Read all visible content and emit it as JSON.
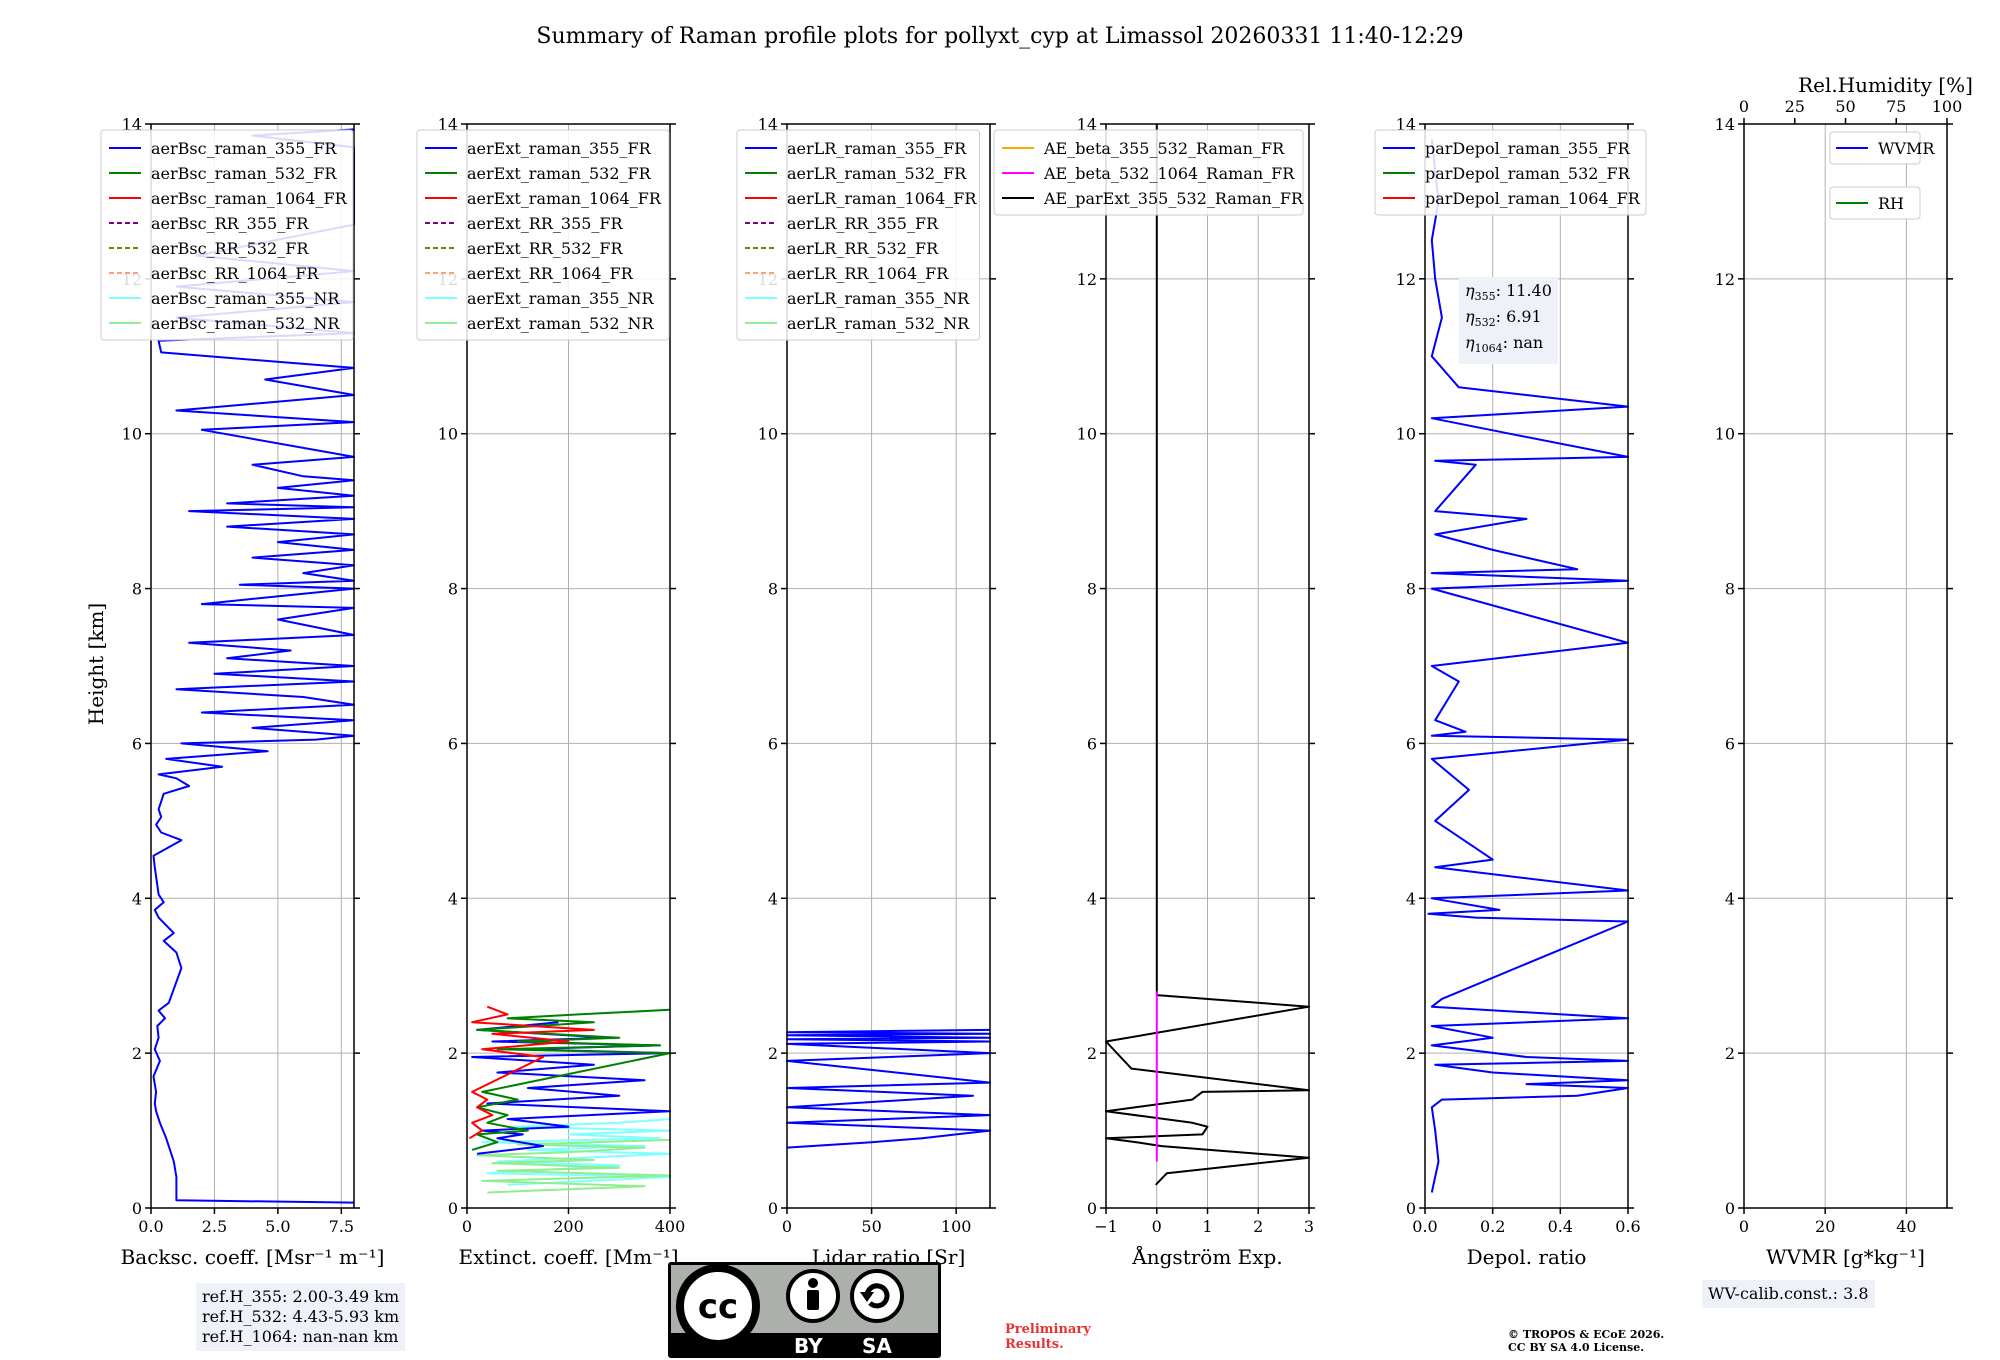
{
  "title": "Summary of Raman profile plots for pollyxt_cyp at Limassol 20260331 11:40-12:29",
  "ylabel": "Height [km]",
  "yticks": [
    "0",
    "2",
    "4",
    "6",
    "8",
    "10",
    "12",
    "14"
  ],
  "panels": [
    {
      "id": "bsc",
      "xlabel": "Backsc. coeff. [Msr⁻¹ m⁻¹]",
      "xticks": [
        "0.0",
        "2.5",
        "5.0",
        "7.5"
      ],
      "xlim": [
        0,
        8
      ],
      "legend": [
        {
          "label": "aerBsc_raman_355_FR",
          "color": "#0000ff",
          "dash": false
        },
        {
          "label": "aerBsc_raman_532_FR",
          "color": "#008000",
          "dash": false
        },
        {
          "label": "aerBsc_raman_1064_FR",
          "color": "#ff0000",
          "dash": false
        },
        {
          "label": "aerBsc_RR_355_FR",
          "color": "#800080",
          "dash": true
        },
        {
          "label": "aerBsc_RR_532_FR",
          "color": "#808000",
          "dash": true
        },
        {
          "label": "aerBsc_RR_1064_FR",
          "color": "#ffa07a",
          "dash": true
        },
        {
          "label": "aerBsc_raman_355_NR",
          "color": "#7fffff",
          "dash": false
        },
        {
          "label": "aerBsc_raman_532_NR",
          "color": "#90ee90",
          "dash": false
        }
      ]
    },
    {
      "id": "ext",
      "xlabel": "Extinct. coeff. [Mm⁻¹]",
      "xticks": [
        "0",
        "200",
        "400"
      ],
      "xlim": [
        0,
        400
      ],
      "legend": [
        {
          "label": "aerExt_raman_355_FR",
          "color": "#0000ff",
          "dash": false
        },
        {
          "label": "aerExt_raman_532_FR",
          "color": "#008000",
          "dash": false
        },
        {
          "label": "aerExt_raman_1064_FR",
          "color": "#ff0000",
          "dash": false
        },
        {
          "label": "aerExt_RR_355_FR",
          "color": "#800080",
          "dash": true
        },
        {
          "label": "aerExt_RR_532_FR",
          "color": "#808000",
          "dash": true
        },
        {
          "label": "aerExt_RR_1064_FR",
          "color": "#ffa07a",
          "dash": true
        },
        {
          "label": "aerExt_raman_355_NR",
          "color": "#7fffff",
          "dash": false
        },
        {
          "label": "aerExt_raman_532_NR",
          "color": "#90ee90",
          "dash": false
        }
      ]
    },
    {
      "id": "lr",
      "xlabel": "Lidar ratio [Sr]",
      "xticks": [
        "0",
        "50",
        "100"
      ],
      "xlim": [
        0,
        120
      ],
      "legend": [
        {
          "label": "aerLR_raman_355_FR",
          "color": "#0000ff",
          "dash": false
        },
        {
          "label": "aerLR_raman_532_FR",
          "color": "#008000",
          "dash": false
        },
        {
          "label": "aerLR_raman_1064_FR",
          "color": "#ff0000",
          "dash": false
        },
        {
          "label": "aerLR_RR_355_FR",
          "color": "#800080",
          "dash": true
        },
        {
          "label": "aerLR_RR_532_FR",
          "color": "#808000",
          "dash": true
        },
        {
          "label": "aerLR_RR_1064_FR",
          "color": "#ffa07a",
          "dash": true
        },
        {
          "label": "aerLR_raman_355_NR",
          "color": "#7fffff",
          "dash": false
        },
        {
          "label": "aerLR_raman_532_NR",
          "color": "#90ee90",
          "dash": false
        }
      ]
    },
    {
      "id": "ae",
      "xlabel": "Ångström Exp.",
      "xticks": [
        "−1",
        "0",
        "1",
        "2",
        "3"
      ],
      "xlim": [
        -1,
        3
      ],
      "legend": [
        {
          "label": "AE_beta_355_532_Raman_FR",
          "color": "#ffa500",
          "dash": false
        },
        {
          "label": "AE_beta_532_1064_Raman_FR",
          "color": "#ff00ff",
          "dash": false
        },
        {
          "label": "AE_parExt_355_532_Raman_FR",
          "color": "#000000",
          "dash": false
        }
      ]
    },
    {
      "id": "dep",
      "xlabel": "Depol. ratio",
      "xticks": [
        "0.0",
        "0.2",
        "0.4",
        "0.6"
      ],
      "xlim": [
        0,
        0.6
      ],
      "legend": [
        {
          "label": "parDepol_raman_355_FR",
          "color": "#0000ff",
          "dash": false
        },
        {
          "label": "parDepol_raman_532_FR",
          "color": "#008000",
          "dash": false
        },
        {
          "label": "parDepol_raman_1064_FR",
          "color": "#ff0000",
          "dash": false
        }
      ]
    },
    {
      "id": "wv",
      "xlabel": "WVMR [g*kg⁻¹]",
      "xticks": [
        "0",
        "20",
        "40"
      ],
      "xlim": [
        0,
        50
      ],
      "toplabel": "Rel.Humidity [%]",
      "topticks": [
        "0",
        "25",
        "50",
        "75",
        "100"
      ],
      "legend": [
        {
          "label": "WVMR",
          "color": "#0000ff",
          "dash": false
        },
        {
          "label": "RH",
          "color": "#008000",
          "dash": false
        }
      ]
    }
  ],
  "eta": {
    "e355": "11.40",
    "e532": "6.91",
    "e1064": "nan"
  },
  "refh": {
    "r355": "ref.H_355: 2.00-3.49 km",
    "r532": "ref.H_532: 4.43-5.93 km",
    "r1064": "ref.H_1064: nan-nan km"
  },
  "wv_calib": "WV-calib.const.: 3.8",
  "preliminary": [
    "Preliminary",
    "Results."
  ],
  "copyright": [
    "© TROPOS & ECoE 2026.",
    "CC BY SA 4.0 License."
  ],
  "cc_badge": {
    "by": "BY",
    "sa": "SA",
    "cc": "cc"
  },
  "chart_data": [
    {
      "type": "line",
      "title": "Backsc. coeff.",
      "xlabel": "Backsc. coeff. [Msr⁻¹ m⁻¹]",
      "ylabel": "Height [km]",
      "xlim": [
        0,
        8
      ],
      "ylim": [
        0,
        14
      ],
      "series": [
        {
          "name": "aerBsc_raman_355_FR",
          "color": "#0000ff",
          "x": [
            8.0,
            1.0,
            1.0,
            1.0,
            1.0,
            0.9,
            0.6,
            0.35,
            0.2,
            0.15,
            0.2,
            0.1,
            0.35,
            0.15,
            0.3,
            0.25,
            0.55,
            0.3,
            0.7,
            1.2,
            1.0,
            0.5,
            0.9,
            0.3,
            0.15,
            0.5,
            0.3,
            0.15,
            0.1,
            1.2,
            0.4,
            0.2,
            0.4,
            0.3,
            0.4,
            0.5,
            1.5,
            1.0,
            0.3,
            2.8,
            0.6,
            4.6,
            1.2,
            6.5,
            8.0,
            4.0,
            8.0,
            2.0,
            8.0,
            6.0,
            1.0,
            8.0,
            2.5,
            8.0,
            3.0,
            5.5,
            1.5,
            8.0,
            5.0,
            8.0,
            2.0,
            8.0,
            3.5,
            8.0,
            6.0,
            8.0,
            4.0,
            8.0,
            5.0,
            8.0,
            3.0,
            8.0,
            1.5,
            8.0,
            3.0,
            8.0,
            5.0,
            8.0,
            6.0,
            4.0,
            8.0,
            2.0,
            8.0,
            1.0,
            8.0,
            4.5,
            8.0,
            0.4,
            0.3,
            8.0,
            1.0,
            8.0,
            1.0,
            8.0,
            1.8,
            8.0,
            8.0,
            8.0,
            8.0,
            4.0,
            8.0
          ],
          "y": [
            0.07,
            0.1,
            0.25,
            0.26,
            0.4,
            0.6,
            0.9,
            1.1,
            1.25,
            1.35,
            1.5,
            1.7,
            1.9,
            2.05,
            2.2,
            2.35,
            2.45,
            2.55,
            2.65,
            3.1,
            3.3,
            3.45,
            3.55,
            3.75,
            3.85,
            3.95,
            4.05,
            4.4,
            4.55,
            4.75,
            4.85,
            4.95,
            5.05,
            5.15,
            5.25,
            5.35,
            5.45,
            5.55,
            5.6,
            5.7,
            5.8,
            5.9,
            6.0,
            6.05,
            6.1,
            6.2,
            6.3,
            6.4,
            6.5,
            6.6,
            6.7,
            6.8,
            6.9,
            7.0,
            7.1,
            7.2,
            7.3,
            7.4,
            7.6,
            7.75,
            7.8,
            8.0,
            8.05,
            8.1,
            8.2,
            8.3,
            8.4,
            8.5,
            8.6,
            8.7,
            8.8,
            8.9,
            9.0,
            9.05,
            9.1,
            9.2,
            9.3,
            9.4,
            9.45,
            9.6,
            9.7,
            10.05,
            10.15,
            10.3,
            10.5,
            10.7,
            10.85,
            11.05,
            11.2,
            11.3,
            11.5,
            11.7,
            11.9,
            12.1,
            12.3,
            12.7,
            13.0,
            13.4,
            13.7,
            13.85,
            13.93
          ]
        }
      ]
    },
    {
      "type": "line",
      "title": "Extinct. coeff.",
      "xlabel": "Extinct. coeff. [Mm⁻¹]",
      "xlim": [
        0,
        400
      ],
      "ylim": [
        0,
        14
      ],
      "series": [
        {
          "name": "aerExt_raman_355_NR",
          "color": "#7fffff",
          "x": [
            80,
            400,
            40,
            300,
            60,
            400,
            120,
            350,
            30,
            380,
            200,
            400,
            90,
            300,
            400
          ],
          "y": [
            0.3,
            0.4,
            0.45,
            0.55,
            0.6,
            0.7,
            0.75,
            0.8,
            0.85,
            0.9,
            0.95,
            1.0,
            1.05,
            1.1,
            1.15
          ]
        },
        {
          "name": "aerExt_raman_532_NR",
          "color": "#90ee90",
          "x": [
            40,
            350,
            30,
            400,
            60,
            300,
            50,
            250,
            20,
            200,
            350,
            100,
            400
          ],
          "y": [
            0.2,
            0.28,
            0.35,
            0.42,
            0.48,
            0.52,
            0.58,
            0.62,
            0.68,
            0.72,
            0.78,
            0.82,
            0.88
          ]
        },
        {
          "name": "aerExt_raman_355_FR",
          "color": "#0000ff",
          "x": [
            20,
            150,
            60,
            110,
            30,
            200,
            80,
            400,
            40,
            300,
            120,
            350,
            60,
            250,
            10,
            400,
            100,
            380,
            50,
            280,
            20,
            180
          ],
          "y": [
            0.7,
            0.8,
            0.9,
            0.95,
            1.0,
            1.05,
            1.15,
            1.25,
            1.35,
            1.45,
            1.55,
            1.65,
            1.75,
            1.85,
            1.95,
            2.0,
            2.05,
            2.1,
            2.15,
            2.2,
            2.3,
            2.4
          ]
        },
        {
          "name": "aerExt_raman_532_FR",
          "color": "#008000",
          "x": [
            10,
            60,
            20,
            120,
            40,
            80,
            20,
            100,
            30,
            400,
            60,
            380,
            100,
            300,
            20,
            250,
            80,
            220,
            400
          ],
          "y": [
            0.75,
            0.85,
            0.95,
            1.0,
            1.1,
            1.2,
            1.3,
            1.4,
            1.5,
            2.0,
            2.05,
            2.1,
            2.15,
            2.2,
            2.3,
            2.4,
            2.45,
            2.5,
            2.56
          ]
        },
        {
          "name": "aerExt_raman_1064_FR",
          "color": "#ff0000",
          "x": [
            5,
            30,
            10,
            50,
            20,
            40,
            10,
            150,
            30,
            200,
            50,
            250,
            10,
            80,
            40
          ],
          "y": [
            0.9,
            1.0,
            1.1,
            1.2,
            1.3,
            1.4,
            1.5,
            1.95,
            2.05,
            2.15,
            2.25,
            2.3,
            2.4,
            2.5,
            2.6
          ]
        }
      ]
    },
    {
      "type": "line",
      "title": "Lidar ratio",
      "xlabel": "Lidar ratio [Sr]",
      "xlim": [
        0,
        120
      ],
      "ylim": [
        0,
        14
      ],
      "series": [
        {
          "name": "aerLR_raman_355_FR",
          "color": "#0000ff",
          "x": [
            0,
            50,
            80,
            100,
            120,
            0,
            120,
            0,
            110,
            0,
            120,
            0,
            120,
            0,
            120,
            0,
            120,
            0,
            120,
            0,
            120
          ],
          "y": [
            0.78,
            0.85,
            0.9,
            0.95,
            1.0,
            1.1,
            1.2,
            1.3,
            1.45,
            1.55,
            1.62,
            1.9,
            2.0,
            2.12,
            2.15,
            2.18,
            2.2,
            2.23,
            2.25,
            2.27,
            2.3
          ]
        }
      ]
    },
    {
      "type": "line",
      "title": "Ångström Exp.",
      "xlabel": "Ångström Exp.",
      "xlim": [
        -1,
        3
      ],
      "ylim": [
        0,
        14
      ],
      "series": [
        {
          "name": "AE_parExt_355_532_Raman_FR",
          "color": "#000000",
          "x": [
            -0.02,
            0.2,
            3.0,
            0.1,
            -0.4,
            -1.0,
            0.9,
            1.0,
            0.7,
            -1.0,
            0.7,
            0.9,
            3.0,
            -0.5,
            -1.0,
            3.0,
            0.0,
            0.0
          ],
          "y": [
            0.3,
            0.45,
            0.65,
            0.8,
            0.85,
            0.9,
            0.95,
            1.05,
            1.1,
            1.25,
            1.4,
            1.5,
            1.52,
            1.8,
            2.15,
            2.6,
            2.75,
            14.0
          ]
        },
        {
          "name": "AE_beta_532_1064_Raman_FR",
          "color": "#ff00ff",
          "x": [
            0.0,
            0.0
          ],
          "y": [
            0.6,
            2.8
          ]
        }
      ]
    },
    {
      "type": "line",
      "title": "Depol. ratio",
      "xlabel": "Depol. ratio",
      "xlim": [
        0,
        0.6
      ],
      "ylim": [
        0,
        14
      ],
      "series": [
        {
          "name": "parDepol_raman_355_FR",
          "color": "#0000ff",
          "x": [
            0.02,
            0.04,
            0.03,
            0.02,
            0.05,
            0.45,
            0.6,
            0.3,
            0.6,
            0.2,
            0.03,
            0.6,
            0.3,
            0.02,
            0.2,
            0.02,
            0.6,
            0.02,
            0.05,
            0.6,
            0.15,
            0.01,
            0.22,
            0.02,
            0.6,
            0.03,
            0.2,
            0.03,
            0.13,
            0.02,
            0.6,
            0.02,
            0.12,
            0.03,
            0.1,
            0.02,
            0.6,
            0.02,
            0.6,
            0.02,
            0.45,
            0.2,
            0.03,
            0.3,
            0.03,
            0.15,
            0.03,
            0.6,
            0.25,
            0.02,
            0.6,
            0.1,
            0.02,
            0.05,
            0.03,
            0.02,
            0.04,
            0.02
          ],
          "y": [
            0.2,
            0.6,
            1.0,
            1.3,
            1.4,
            1.45,
            1.55,
            1.6,
            1.65,
            1.75,
            1.85,
            1.9,
            1.95,
            2.1,
            2.2,
            2.35,
            2.45,
            2.6,
            2.7,
            3.7,
            3.75,
            3.8,
            3.85,
            4.0,
            4.1,
            4.4,
            4.5,
            5.0,
            5.4,
            5.8,
            6.05,
            6.1,
            6.15,
            6.3,
            6.8,
            7.0,
            7.3,
            8.0,
            8.1,
            8.2,
            8.25,
            8.5,
            8.7,
            8.9,
            9.0,
            9.6,
            9.65,
            9.7,
            10.0,
            10.2,
            10.35,
            10.6,
            11.0,
            11.5,
            12.0,
            12.5,
            13.0,
            13.8
          ]
        }
      ]
    },
    {
      "type": "line",
      "title": "WVMR",
      "xlabel": "WVMR [g*kg⁻¹]",
      "xlim": [
        0,
        50
      ],
      "ylim": [
        0,
        14
      ],
      "series": []
    }
  ]
}
